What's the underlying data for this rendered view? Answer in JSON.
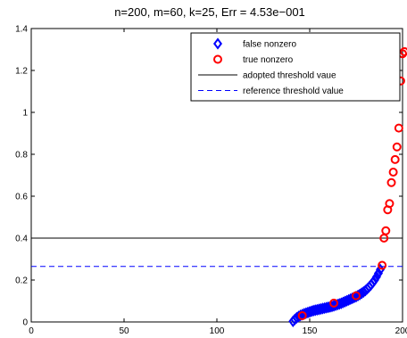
{
  "chart_data": {
    "type": "scatter",
    "title": "n=200, m=60, k=25, Err = 4.53e−001",
    "xlabel": "",
    "ylabel": "",
    "xlim": [
      0,
      200
    ],
    "ylim": [
      0,
      1.4
    ],
    "xticks": [
      0,
      50,
      100,
      150,
      200
    ],
    "xtick_labels": [
      "0",
      "50",
      "100",
      "150",
      "200"
    ],
    "yticks": [
      0,
      0.2,
      0.4,
      0.6,
      0.8,
      1,
      1.2,
      1.4
    ],
    "ytick_labels": [
      "0",
      "0.2",
      "0.4",
      "0.6",
      "0.8",
      "1",
      "1.2",
      "1.4"
    ],
    "grid": false,
    "legend_position": "top-right",
    "legend": [
      {
        "label": "false nonzero",
        "marker": "diamond",
        "color": "#0000ff"
      },
      {
        "label": "true nonzero",
        "marker": "circle",
        "color": "#ff0000"
      },
      {
        "label": "adopted threshold vaue",
        "line": "solid",
        "color": "#000000"
      },
      {
        "label": "reference threshold value",
        "line": "dashed",
        "color": "#0000ff"
      }
    ],
    "threshold_lines": [
      {
        "name": "adopted threshold vaue",
        "y": 0.4,
        "color": "#000000",
        "style": "solid"
      },
      {
        "name": "reference threshold value",
        "y": 0.265,
        "color": "#0000ff",
        "style": "dashed"
      }
    ],
    "series": [
      {
        "name": "false nonzero",
        "marker": "diamond",
        "color": "#0000ff",
        "x": [
          141,
          142,
          143,
          144,
          145,
          146,
          147,
          148,
          149,
          150,
          151,
          152,
          153,
          154,
          155,
          156,
          157,
          158,
          159,
          160,
          161,
          162,
          163,
          164,
          165,
          166,
          167,
          168,
          169,
          170,
          171,
          172,
          173,
          174,
          175,
          176,
          177,
          178,
          179,
          180,
          181,
          182,
          183,
          184,
          185,
          186,
          187,
          188
        ],
        "y": [
          0.003,
          0.012,
          0.02,
          0.026,
          0.031,
          0.035,
          0.039,
          0.042,
          0.045,
          0.048,
          0.051,
          0.054,
          0.056,
          0.058,
          0.06,
          0.062,
          0.064,
          0.066,
          0.068,
          0.07,
          0.072,
          0.074,
          0.077,
          0.08,
          0.083,
          0.086,
          0.089,
          0.093,
          0.097,
          0.101,
          0.105,
          0.109,
          0.113,
          0.117,
          0.121,
          0.126,
          0.131,
          0.137,
          0.143,
          0.15,
          0.158,
          0.167,
          0.177,
          0.188,
          0.2,
          0.215,
          0.232,
          0.25
        ]
      },
      {
        "name": "true nonzero",
        "marker": "circle",
        "color": "#ff0000",
        "x": [
          146,
          163,
          175,
          189,
          190,
          191,
          192,
          193,
          194,
          195,
          196,
          197,
          198,
          199,
          200
        ],
        "y": [
          0.03,
          0.09,
          0.125,
          0.27,
          0.4,
          0.435,
          0.535,
          0.565,
          0.665,
          0.715,
          0.775,
          0.835,
          0.925,
          1.15,
          1.28
        ]
      },
      {
        "name": "true nonzero (top)",
        "marker": "circle",
        "color": "#ff0000",
        "x": [
          201
        ],
        "y": [
          1.29
        ]
      }
    ]
  }
}
